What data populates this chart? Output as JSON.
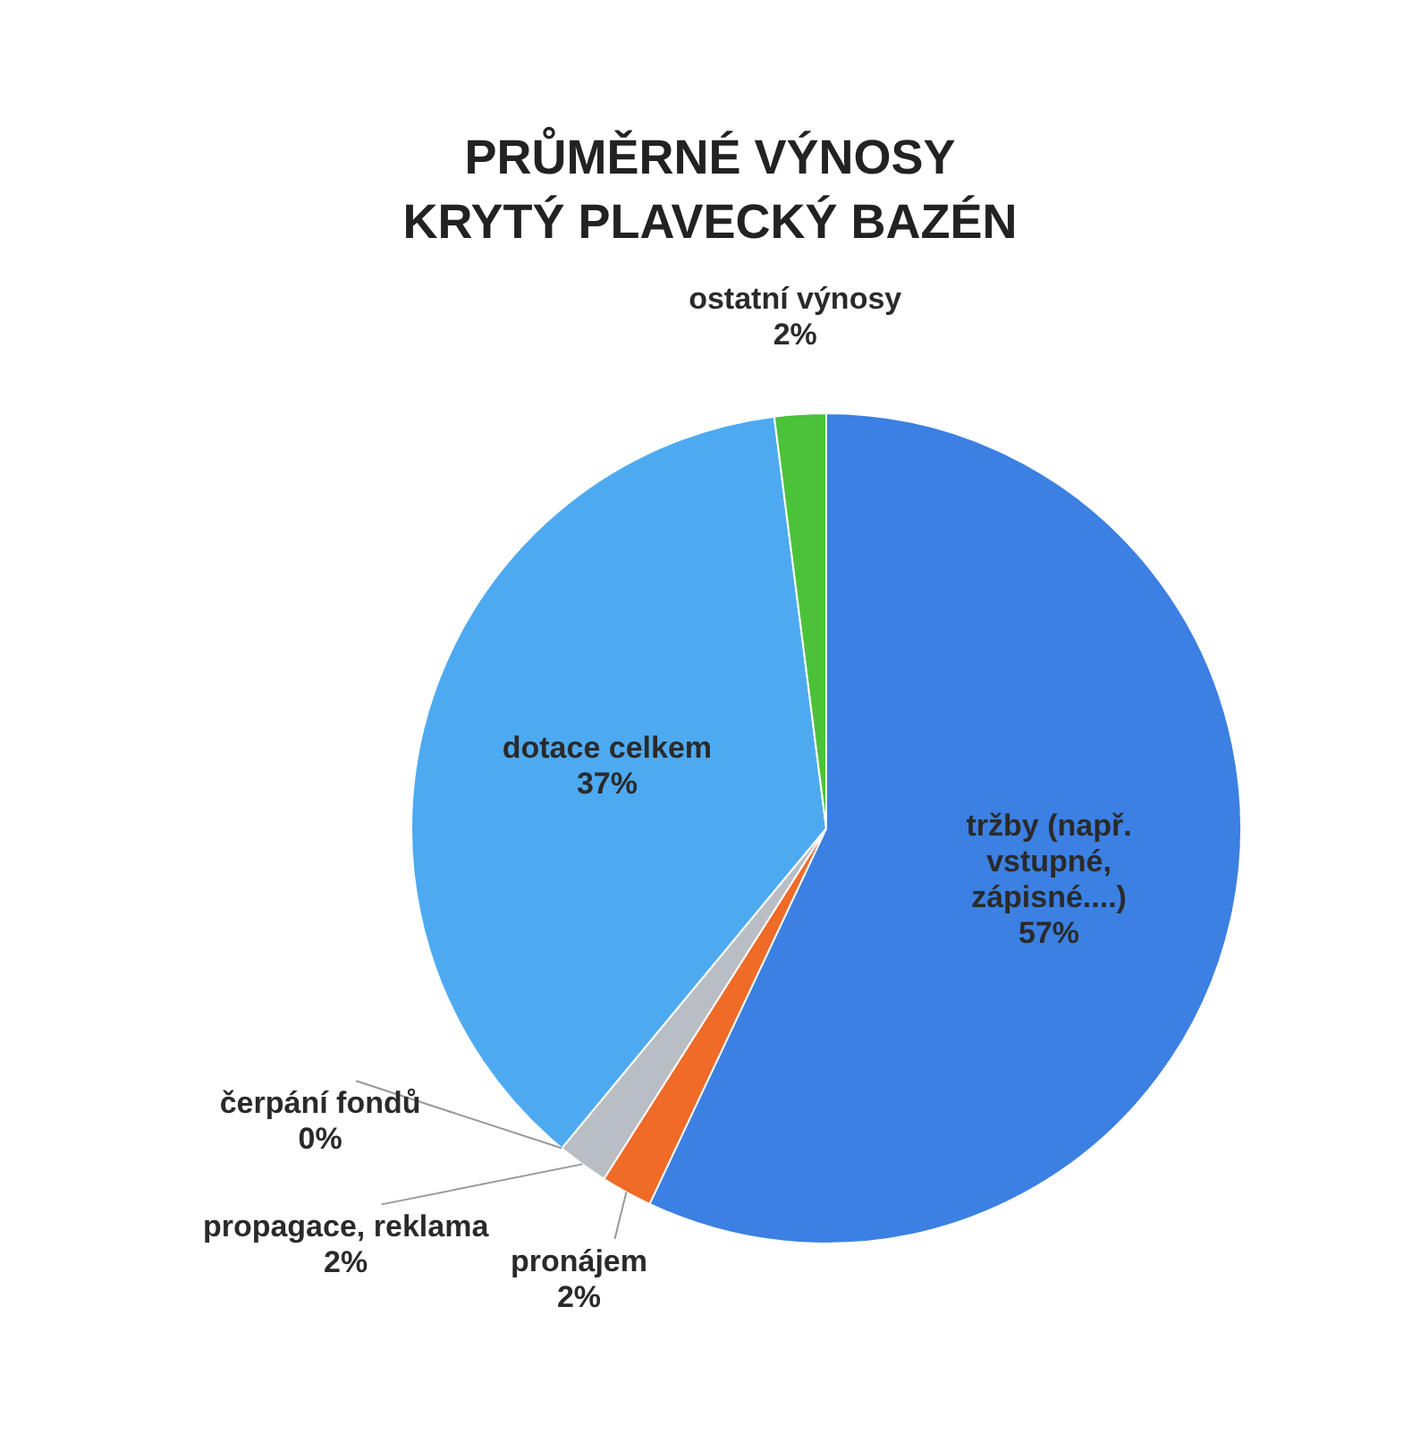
{
  "chart_data": {
    "type": "pie",
    "title": "PRŮMĚRNÉ VÝNOSY",
    "subtitle": "KRYTÝ PLAVECKÝ BAZÉN",
    "categories": [
      "tržby (např. vstupné, zápisné....)",
      "pronájem",
      "propagace, reklama",
      "čerpání fondů",
      "dotace celkem",
      "ostatní výnosy"
    ],
    "values": [
      57,
      2,
      2,
      0,
      37,
      2
    ],
    "value_labels": [
      "57%",
      "2%",
      "2%",
      "0%",
      "37%",
      "2%"
    ],
    "colors": [
      "#3b80e2",
      "#f06a28",
      "#b9bec4",
      "#e8c23a",
      "#4eaaf0",
      "#4cc13a"
    ],
    "legend": false
  }
}
